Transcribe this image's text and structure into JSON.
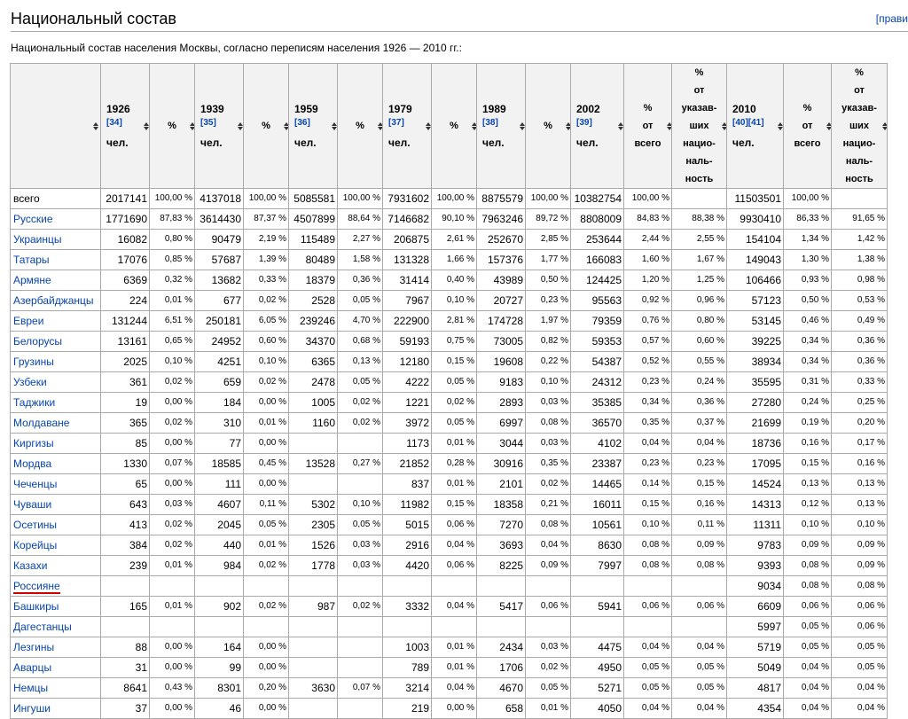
{
  "section": {
    "title": "Национальный состав",
    "edit_label": "[прави"
  },
  "intro": "Национальный состав населения Москвы, согласно переписям населения 1926 — 2010 гг.:",
  "table": {
    "headers": [
      {
        "type": "name",
        "lines": []
      },
      {
        "type": "year",
        "year": "1926",
        "ref": "[34]",
        "unit": "чел."
      },
      {
        "type": "pct",
        "lines": [
          "%"
        ]
      },
      {
        "type": "year",
        "year": "1939",
        "ref": "[35]",
        "unit": "чел."
      },
      {
        "type": "pct",
        "lines": [
          "%"
        ]
      },
      {
        "type": "year",
        "year": "1959",
        "ref": "[36]",
        "unit": "чел."
      },
      {
        "type": "pct",
        "lines": [
          "%"
        ]
      },
      {
        "type": "year",
        "year": "1979",
        "ref": "[37]",
        "unit": "чел."
      },
      {
        "type": "pct",
        "lines": [
          "%"
        ]
      },
      {
        "type": "year",
        "year": "1989",
        "ref": "[38]",
        "unit": "чел."
      },
      {
        "type": "pct",
        "lines": [
          "%"
        ]
      },
      {
        "type": "year",
        "year": "2002",
        "ref": "[39]",
        "unit": "чел."
      },
      {
        "type": "sub",
        "lines": [
          "%",
          "от",
          "всего"
        ]
      },
      {
        "type": "sub",
        "lines": [
          "%",
          "от",
          "указав-",
          "ших",
          "нацио-",
          "наль-",
          "ность"
        ]
      },
      {
        "type": "year",
        "year": "2010",
        "ref": "[40][41]",
        "unit": "чел."
      },
      {
        "type": "sub",
        "lines": [
          "%",
          "от",
          "всего"
        ]
      },
      {
        "type": "sub",
        "lines": [
          "%",
          "от",
          "указав-",
          "ших",
          "нацио-",
          "наль-",
          "ность"
        ]
      }
    ],
    "rows": [
      {
        "name": "всего",
        "link": false,
        "cells": [
          "2017141",
          "100,00 %",
          "4137018",
          "100,00 %",
          "5085581",
          "100,00 %",
          "7931602",
          "100,00 %",
          "8875579",
          "100,00 %",
          "10382754",
          "100,00 %",
          "",
          "11503501",
          "100,00 %",
          ""
        ]
      },
      {
        "name": "Русские",
        "link": true,
        "cells": [
          "1771690",
          "87,83 %",
          "3614430",
          "87,37 %",
          "4507899",
          "88,64 %",
          "7146682",
          "90,10 %",
          "7963246",
          "89,72 %",
          "8808009",
          "84,83 %",
          "88,38 %",
          "9930410",
          "86,33 %",
          "91,65 %"
        ]
      },
      {
        "name": "Украинцы",
        "link": true,
        "cells": [
          "16082",
          "0,80 %",
          "90479",
          "2,19 %",
          "115489",
          "2,27 %",
          "206875",
          "2,61 %",
          "252670",
          "2,85 %",
          "253644",
          "2,44 %",
          "2,55 %",
          "154104",
          "1,34 %",
          "1,42 %"
        ]
      },
      {
        "name": "Татары",
        "link": true,
        "cells": [
          "17076",
          "0,85 %",
          "57687",
          "1,39 %",
          "80489",
          "1,58 %",
          "131328",
          "1,66 %",
          "157376",
          "1,77 %",
          "166083",
          "1,60 %",
          "1,67 %",
          "149043",
          "1,30 %",
          "1,38 %"
        ]
      },
      {
        "name": "Армяне",
        "link": true,
        "cells": [
          "6369",
          "0,32 %",
          "13682",
          "0,33 %",
          "18379",
          "0,36 %",
          "31414",
          "0,40 %",
          "43989",
          "0,50 %",
          "124425",
          "1,20 %",
          "1,25 %",
          "106466",
          "0,93 %",
          "0,98 %"
        ]
      },
      {
        "name": "Азербайджанцы",
        "link": true,
        "cells": [
          "224",
          "0,01 %",
          "677",
          "0,02 %",
          "2528",
          "0,05 %",
          "7967",
          "0,10 %",
          "20727",
          "0,23 %",
          "95563",
          "0,92 %",
          "0,96 %",
          "57123",
          "0,50 %",
          "0,53 %"
        ]
      },
      {
        "name": "Евреи",
        "link": true,
        "cells": [
          "131244",
          "6,51 %",
          "250181",
          "6,05 %",
          "239246",
          "4,70 %",
          "222900",
          "2,81 %",
          "174728",
          "1,97 %",
          "79359",
          "0,76 %",
          "0,80 %",
          "53145",
          "0,46 %",
          "0,49 %"
        ]
      },
      {
        "name": "Белорусы",
        "link": true,
        "cells": [
          "13161",
          "0,65 %",
          "24952",
          "0,60 %",
          "34370",
          "0,68 %",
          "59193",
          "0,75 %",
          "73005",
          "0,82 %",
          "59353",
          "0,57 %",
          "0,60 %",
          "39225",
          "0,34 %",
          "0,36 %"
        ]
      },
      {
        "name": "Грузины",
        "link": true,
        "cells": [
          "2025",
          "0,10 %",
          "4251",
          "0,10 %",
          "6365",
          "0,13 %",
          "12180",
          "0,15 %",
          "19608",
          "0,22 %",
          "54387",
          "0,52 %",
          "0,55 %",
          "38934",
          "0,34 %",
          "0,36 %"
        ]
      },
      {
        "name": "Узбеки",
        "link": true,
        "cells": [
          "361",
          "0,02 %",
          "659",
          "0,02 %",
          "2478",
          "0,05 %",
          "4222",
          "0,05 %",
          "9183",
          "0,10 %",
          "24312",
          "0,23 %",
          "0,24 %",
          "35595",
          "0,31 %",
          "0,33 %"
        ]
      },
      {
        "name": "Таджики",
        "link": true,
        "cells": [
          "19",
          "0,00 %",
          "184",
          "0,00 %",
          "1005",
          "0,02 %",
          "1221",
          "0,02 %",
          "2893",
          "0,03 %",
          "35385",
          "0,34 %",
          "0,36 %",
          "27280",
          "0,24 %",
          "0,25 %"
        ]
      },
      {
        "name": "Молдаване",
        "link": true,
        "cells": [
          "365",
          "0,02 %",
          "310",
          "0,01 %",
          "1160",
          "0,02 %",
          "3972",
          "0,05 %",
          "6997",
          "0,08 %",
          "36570",
          "0,35 %",
          "0,37 %",
          "21699",
          "0,19 %",
          "0,20 %"
        ]
      },
      {
        "name": "Киргизы",
        "link": true,
        "cells": [
          "85",
          "0,00 %",
          "77",
          "0,00 %",
          "",
          "",
          "1173",
          "0,01 %",
          "3044",
          "0,03 %",
          "4102",
          "0,04 %",
          "0,04 %",
          "18736",
          "0,16 %",
          "0,17 %"
        ]
      },
      {
        "name": "Мордва",
        "link": true,
        "cells": [
          "1330",
          "0,07 %",
          "18585",
          "0,45 %",
          "13528",
          "0,27 %",
          "21852",
          "0,28 %",
          "30916",
          "0,35 %",
          "23387",
          "0,23 %",
          "0,23 %",
          "17095",
          "0,15 %",
          "0,16 %"
        ]
      },
      {
        "name": "Чеченцы",
        "link": true,
        "cells": [
          "65",
          "0,00 %",
          "111",
          "0,00 %",
          "",
          "",
          "837",
          "0,01 %",
          "2101",
          "0,02 %",
          "14465",
          "0,14 %",
          "0,15 %",
          "14524",
          "0,13 %",
          "0,13 %"
        ]
      },
      {
        "name": "Чуваши",
        "link": true,
        "cells": [
          "643",
          "0,03 %",
          "4607",
          "0,11 %",
          "5302",
          "0,10 %",
          "11982",
          "0,15 %",
          "18358",
          "0,21 %",
          "16011",
          "0,15 %",
          "0,16 %",
          "14313",
          "0,12 %",
          "0,13 %"
        ]
      },
      {
        "name": "Осетины",
        "link": true,
        "cells": [
          "413",
          "0,02 %",
          "2045",
          "0,05 %",
          "2305",
          "0,05 %",
          "5015",
          "0,06 %",
          "7270",
          "0,08 %",
          "10561",
          "0,10 %",
          "0,11 %",
          "11311",
          "0,10 %",
          "0,10 %"
        ]
      },
      {
        "name": "Корейцы",
        "link": true,
        "cells": [
          "384",
          "0,02 %",
          "440",
          "0,01 %",
          "1526",
          "0,03 %",
          "2916",
          "0,04 %",
          "3693",
          "0,04 %",
          "8630",
          "0,08 %",
          "0,09 %",
          "9783",
          "0,09 %",
          "0,09 %"
        ]
      },
      {
        "name": "Казахи",
        "link": true,
        "cells": [
          "239",
          "0,01 %",
          "984",
          "0,02 %",
          "1778",
          "0,03 %",
          "4420",
          "0,06 %",
          "8225",
          "0,09 %",
          "7997",
          "0,08 %",
          "0,08 %",
          "9393",
          "0,08 %",
          "0,09 %"
        ]
      },
      {
        "name": "Россияне",
        "link": true,
        "newlink": true,
        "cells": [
          "",
          "",
          "",
          "",
          "",
          "",
          "",
          "",
          "",
          "",
          "",
          "",
          "",
          "9034",
          "0,08 %",
          "0,08 %"
        ]
      },
      {
        "name": "Башкиры",
        "link": true,
        "cells": [
          "165",
          "0,01 %",
          "902",
          "0,02 %",
          "987",
          "0,02 %",
          "3332",
          "0,04 %",
          "5417",
          "0,06 %",
          "5941",
          "0,06 %",
          "0,06 %",
          "6609",
          "0,06 %",
          "0,06 %"
        ]
      },
      {
        "name": "Дагестанцы",
        "link": true,
        "cells": [
          "",
          "",
          "",
          "",
          "",
          "",
          "",
          "",
          "",
          "",
          "",
          "",
          "",
          "5997",
          "0,05 %",
          "0,06 %"
        ]
      },
      {
        "name": "Лезгины",
        "link": true,
        "cells": [
          "88",
          "0,00 %",
          "164",
          "0,00 %",
          "",
          "",
          "1003",
          "0,01 %",
          "2434",
          "0,03 %",
          "4475",
          "0,04 %",
          "0,04 %",
          "5719",
          "0,05 %",
          "0,05 %"
        ]
      },
      {
        "name": "Аварцы",
        "link": true,
        "cells": [
          "31",
          "0,00 %",
          "99",
          "0,00 %",
          "",
          "",
          "789",
          "0,01 %",
          "1706",
          "0,02 %",
          "4950",
          "0,05 %",
          "0,05 %",
          "5049",
          "0,04 %",
          "0,05 %"
        ]
      },
      {
        "name": "Немцы",
        "link": true,
        "cells": [
          "8641",
          "0,43 %",
          "8301",
          "0,20 %",
          "3630",
          "0,07 %",
          "3214",
          "0,04 %",
          "4670",
          "0,05 %",
          "5271",
          "0,05 %",
          "0,05 %",
          "4817",
          "0,04 %",
          "0,04 %"
        ]
      },
      {
        "name": "Ингуши",
        "link": true,
        "cells": [
          "37",
          "0,00 %",
          "46",
          "0,00 %",
          "",
          "",
          "219",
          "0,00 %",
          "658",
          "0,01 %",
          "4050",
          "0,04 %",
          "0,04 %",
          "4354",
          "0,04 %",
          "0,04 %"
        ]
      }
    ]
  },
  "colors": {
    "link": "#0645ad",
    "new_link_underline": "#d00000",
    "border": "#aaaaaa",
    "header_bg": "#f2f2f2"
  }
}
